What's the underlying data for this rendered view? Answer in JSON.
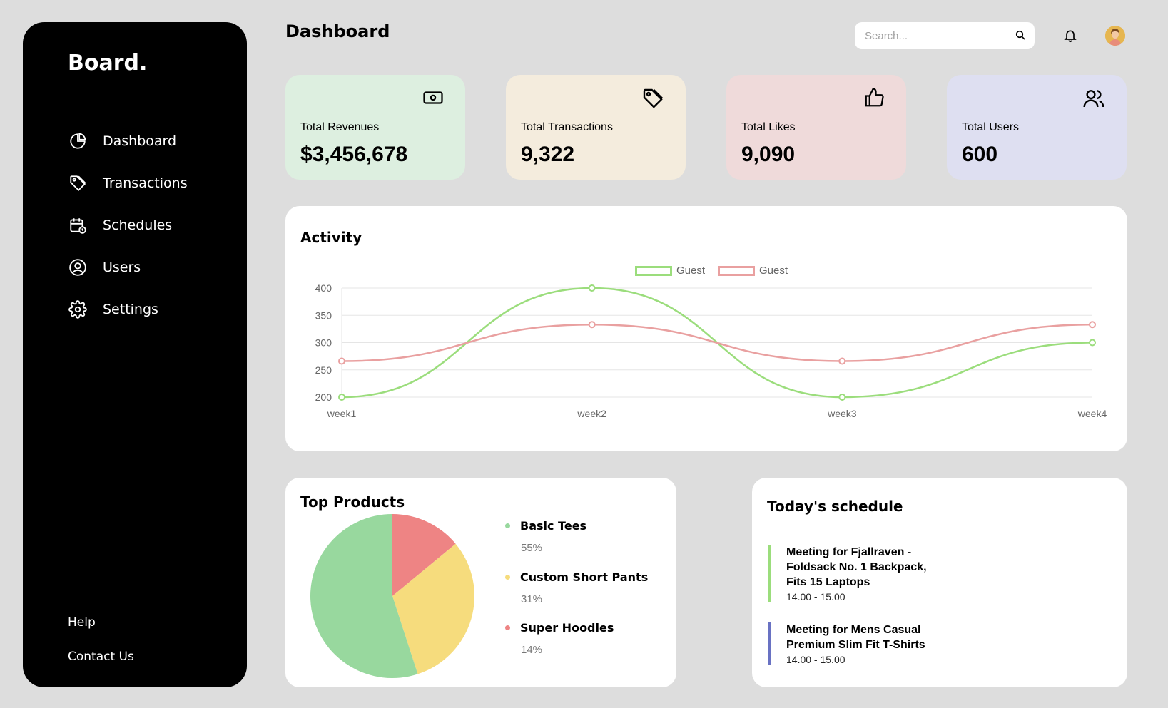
{
  "sidebar": {
    "logo": "Board.",
    "items": [
      {
        "label": "Dashboard",
        "icon": "pie-chart-icon"
      },
      {
        "label": "Transactions",
        "icon": "tag-icon"
      },
      {
        "label": "Schedules",
        "icon": "calendar-icon"
      },
      {
        "label": "Users",
        "icon": "user-circle-icon"
      },
      {
        "label": "Settings",
        "icon": "gear-icon"
      }
    ],
    "help": "Help",
    "contact": "Contact Us"
  },
  "header": {
    "title": "Dashboard",
    "search_placeholder": "Search..."
  },
  "cards": [
    {
      "label": "Total Revenues",
      "value": "$3,456,678",
      "color": "#ddefe0",
      "icon": "money-icon"
    },
    {
      "label": "Total Transactions",
      "value": "9,322",
      "color": "#f4ecdd",
      "icon": "tag-icon"
    },
    {
      "label": "Total Likes",
      "value": "9,090",
      "color": "#efdada",
      "icon": "thumbs-up-icon"
    },
    {
      "label": "Total Users",
      "value": "600",
      "color": "#dedff1",
      "icon": "users-icon"
    }
  ],
  "activity": {
    "title": "Activity",
    "chart_data": {
      "type": "line",
      "categories": [
        "week1",
        "week2",
        "week3",
        "week4"
      ],
      "series": [
        {
          "name": "Guest",
          "color": "#9bdd7c",
          "values": [
            200,
            400,
            200,
            300
          ]
        },
        {
          "name": "Guest",
          "color": "#e9a0a0",
          "values": [
            266,
            333,
            266,
            333
          ]
        }
      ],
      "ylim": [
        200,
        400
      ],
      "yticks": [
        200,
        250,
        300,
        350,
        400
      ],
      "grid": true,
      "legend": "top-center"
    }
  },
  "top_products": {
    "title": "Top Products",
    "chart_data": {
      "type": "pie",
      "categories": [
        "Basic Tees",
        "Custom Short Pants",
        "Super Hoodies"
      ],
      "values": [
        55,
        31,
        14
      ],
      "labels": [
        "55%",
        "31%",
        "14%"
      ],
      "colors": [
        "#98d89e",
        "#f6dc7d",
        "#ee8484"
      ]
    }
  },
  "schedule": {
    "title": "Today's schedule",
    "items": [
      {
        "title": "Meeting for Fjallraven - Foldsack No. 1 Backpack, Fits 15 Laptops",
        "time": "14.00 - 15.00",
        "color": "#9bdd7c"
      },
      {
        "title": "Meeting for Mens Casual Premium Slim Fit T-Shirts",
        "time": "14.00 - 15.00",
        "color": "#6972c3"
      }
    ]
  }
}
